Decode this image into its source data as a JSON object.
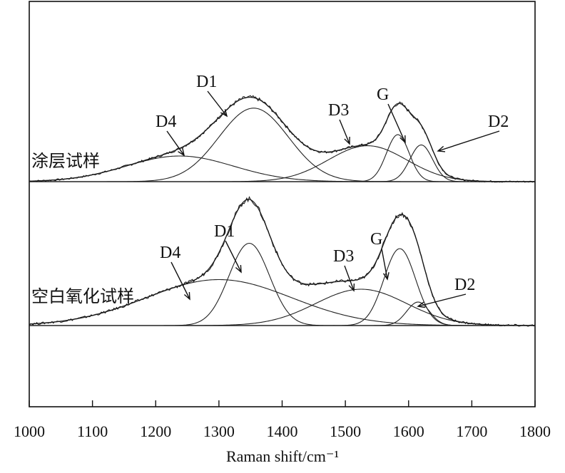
{
  "chart_data": {
    "type": "line",
    "xlabel": "Raman shift/cm⁻¹",
    "xlim": [
      1000,
      1800
    ],
    "xticks": [
      1000,
      1100,
      1200,
      1300,
      1400,
      1500,
      1600,
      1700,
      1800
    ],
    "grid": false,
    "panels": [
      {
        "label": "涂层试样",
        "peaks": [
          {
            "name": "D4",
            "center": 1238,
            "height": 0.3,
            "width": 85
          },
          {
            "name": "D1",
            "center": 1355,
            "height": 0.86,
            "width": 55
          },
          {
            "name": "D3",
            "center": 1535,
            "height": 0.42,
            "width": 62
          },
          {
            "name": "G",
            "center": 1583,
            "height": 0.55,
            "width": 18
          },
          {
            "name": "D2",
            "center": 1620,
            "height": 0.43,
            "width": 18
          }
        ]
      },
      {
        "label": "空白氧化试样",
        "peaks": [
          {
            "name": "D4",
            "center": 1300,
            "height": 0.43,
            "width": 115
          },
          {
            "name": "D1",
            "center": 1348,
            "height": 0.77,
            "width": 32
          },
          {
            "name": "D3",
            "center": 1525,
            "height": 0.34,
            "width": 72
          },
          {
            "name": "G",
            "center": 1586,
            "height": 0.72,
            "width": 25
          },
          {
            "name": "D2",
            "center": 1615,
            "height": 0.22,
            "width": 18
          }
        ]
      }
    ]
  }
}
